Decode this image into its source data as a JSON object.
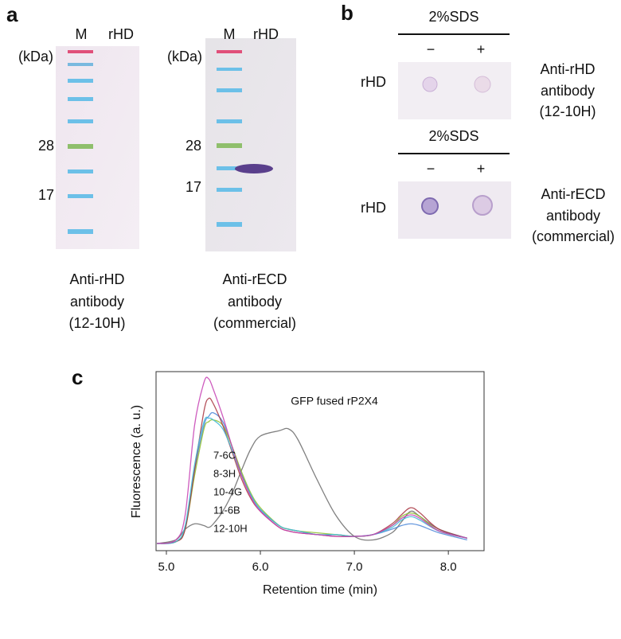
{
  "panel_a": {
    "label": "a",
    "blots": [
      {
        "lanes": [
          "M",
          "rHD"
        ],
        "unit": "(kDa)",
        "markers": [
          "28",
          "17"
        ],
        "caption": [
          "Anti-rHD",
          "antibody",
          "(12-10H)"
        ]
      },
      {
        "lanes": [
          "M",
          "rHD"
        ],
        "unit": "(kDa)",
        "markers": [
          "28",
          "17"
        ],
        "caption": [
          "Anti-rECD",
          "antibody",
          "(commercial)"
        ]
      }
    ]
  },
  "panel_b": {
    "label": "b",
    "rows": [
      {
        "treatment": "2%SDS",
        "minus": "−",
        "plus": "+",
        "sample": "rHD",
        "caption": [
          "Anti-rHD",
          "antibody",
          "(12-10H)"
        ]
      },
      {
        "treatment": "2%SDS",
        "minus": "−",
        "plus": "+",
        "sample": "rHD",
        "caption": [
          "Anti-rECD",
          "antibody",
          "(commercial)"
        ]
      }
    ]
  },
  "chart_data": {
    "type": "line",
    "panel_label": "c",
    "xlabel": "Retention time (min)",
    "ylabel": "Fluorescence (a. u.)",
    "annotation": "GFP fused rP2X4",
    "x": [
      4.9,
      5.1,
      5.2,
      5.3,
      5.4,
      5.45,
      5.5,
      5.6,
      5.7,
      5.8,
      5.9,
      6.0,
      6.2,
      6.3,
      6.4,
      6.6,
      6.8,
      7.0,
      7.2,
      7.4,
      7.5,
      7.6,
      7.7,
      7.9,
      8.2
    ],
    "xlim": [
      4.89,
      8.38
    ],
    "xticks": [
      {
        "value": 5,
        "label": "5.0"
      },
      {
        "value": 6,
        "label": "6.0"
      },
      {
        "value": 7,
        "label": "7.0"
      },
      {
        "value": 8,
        "label": "8.0"
      }
    ],
    "ylim": [
      0,
      100
    ],
    "series": [
      {
        "name": "7-6C",
        "color": "#c63fb3",
        "values": [
          4,
          6,
          20,
          70,
          94,
          96,
          90,
          75,
          58,
          42,
          30,
          22,
          13,
          11,
          10,
          9,
          8,
          8,
          9,
          14,
          18,
          20,
          18,
          11,
          7
        ]
      },
      {
        "name": "8-3H",
        "color": "#3fb8d6",
        "values": [
          4,
          5,
          14,
          48,
          72,
          74,
          73,
          68,
          56,
          42,
          31,
          23,
          14,
          12,
          11,
          9,
          9,
          8,
          9,
          13,
          17,
          19,
          17,
          11,
          7
        ]
      },
      {
        "name": "10-4G",
        "color": "#a8343f",
        "values": [
          4,
          5,
          12,
          45,
          78,
          85,
          82,
          70,
          55,
          40,
          29,
          22,
          13,
          11,
          10,
          9,
          8,
          8,
          9,
          15,
          20,
          24,
          21,
          12,
          7
        ]
      },
      {
        "name": "11-6B",
        "color": "#8cbf2a",
        "values": [
          4,
          5,
          12,
          42,
          68,
          72,
          73,
          70,
          58,
          44,
          32,
          24,
          14,
          12,
          11,
          10,
          9,
          8,
          9,
          14,
          19,
          21,
          19,
          11,
          7
        ]
      },
      {
        "name": "12-10H",
        "color": "#4a86d8",
        "values": [
          4,
          5,
          13,
          45,
          70,
          75,
          77,
          72,
          58,
          43,
          31,
          23,
          14,
          12,
          11,
          9,
          9,
          8,
          9,
          12,
          14,
          15,
          14,
          10,
          6
        ]
      },
      {
        "name": "GFP fused rP2X4",
        "color": "#6a6a6a",
        "values": [
          4,
          6,
          12,
          15,
          14,
          13,
          15,
          22,
          32,
          45,
          57,
          64,
          67,
          68,
          62,
          40,
          20,
          8,
          6,
          10,
          16,
          22,
          19,
          12,
          7
        ]
      }
    ]
  }
}
